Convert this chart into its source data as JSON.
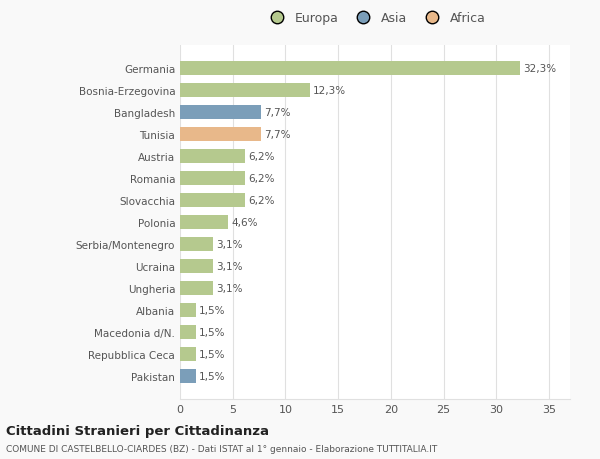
{
  "categories": [
    "Germania",
    "Bosnia-Erzegovina",
    "Bangladesh",
    "Tunisia",
    "Austria",
    "Romania",
    "Slovacchia",
    "Polonia",
    "Serbia/Montenegro",
    "Ucraina",
    "Ungheria",
    "Albania",
    "Macedonia d/N.",
    "Repubblica Ceca",
    "Pakistan"
  ],
  "values": [
    32.3,
    12.3,
    7.7,
    7.7,
    6.2,
    6.2,
    6.2,
    4.6,
    3.1,
    3.1,
    3.1,
    1.5,
    1.5,
    1.5,
    1.5
  ],
  "continent": [
    "Europa",
    "Europa",
    "Asia",
    "Africa",
    "Europa",
    "Europa",
    "Europa",
    "Europa",
    "Europa",
    "Europa",
    "Europa",
    "Europa",
    "Europa",
    "Europa",
    "Asia"
  ],
  "colors": {
    "Europa": "#b5c98e",
    "Asia": "#7b9eb9",
    "Africa": "#e8b88a"
  },
  "legend_colors": {
    "Europa": "#b5c98e",
    "Asia": "#7b9eb9",
    "Africa": "#e8b88a"
  },
  "title": "Cittadini Stranieri per Cittadinanza",
  "subtitle": "COMUNE DI CASTELBELLO-CIARDES (BZ) - Dati ISTAT al 1° gennaio - Elaborazione TUTTITALIA.IT",
  "xlim": [
    0,
    37
  ],
  "background_color": "#f9f9f9",
  "plot_bg_color": "#ffffff",
  "grid_color": "#e0e0e0"
}
